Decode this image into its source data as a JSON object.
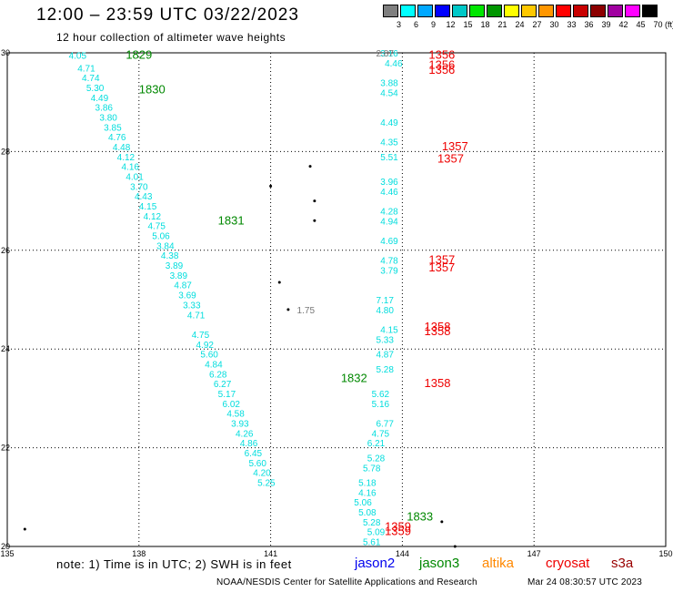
{
  "header": {
    "title": "12:00 – 23:59 UTC 03/22/2023",
    "subtitle": "12 hour collection of altimeter wave heights"
  },
  "legend": {
    "values": [
      "3",
      "6",
      "9",
      "12",
      "15",
      "18",
      "21",
      "24",
      "27",
      "30",
      "33",
      "36",
      "39",
      "42",
      "45",
      "70"
    ],
    "colors": [
      "#7f7f7f",
      "#00ffff",
      "#00a8ff",
      "#0000ff",
      "#00c8c8",
      "#00e600",
      "#009600",
      "#ffff00",
      "#ffc800",
      "#ff9600",
      "#ff0000",
      "#c80000",
      "#8c0000",
      "#a000a0",
      "#ff00ff",
      "#000000"
    ],
    "unit": "(ft)"
  },
  "footer": {
    "note": "note: 1) Time is in UTC; 2) SWH is in feet",
    "missions": [
      {
        "name": "jason2",
        "color": "#0000ee"
      },
      {
        "name": "jason3",
        "color": "#008800"
      },
      {
        "name": "altika",
        "color": "#ff8800"
      },
      {
        "name": "cryosat",
        "color": "#ee0000"
      },
      {
        "name": "s3a",
        "color": "#990000"
      }
    ],
    "credit": "NOAA/NESDIS Center for Satellite Applications and Research",
    "timestamp": "Mar 24 08:30:57 UTC 2023"
  },
  "chart_data": {
    "type": "scatter",
    "xlim": [
      135,
      150
    ],
    "ylim": [
      20,
      30
    ],
    "x_ticks": [
      135,
      138,
      141,
      144,
      147,
      150
    ],
    "y_ticks": [
      20,
      22,
      24,
      26,
      28,
      30
    ],
    "grid": true,
    "series": [
      {
        "mission": "jason3",
        "color": "#00dddd",
        "points": [
          [
            136.4,
            29.95,
            "4.05"
          ],
          [
            136.6,
            29.7,
            "4.71"
          ],
          [
            136.7,
            29.5,
            "4.74"
          ],
          [
            136.8,
            29.3,
            "5.30"
          ],
          [
            136.9,
            29.1,
            "4.49"
          ],
          [
            137.0,
            28.9,
            "3.86"
          ],
          [
            137.1,
            28.7,
            "3.80"
          ],
          [
            137.2,
            28.5,
            "3.85"
          ],
          [
            137.3,
            28.3,
            "4.76"
          ],
          [
            137.4,
            28.1,
            "4.48"
          ],
          [
            137.5,
            27.9,
            "4.12"
          ],
          [
            137.6,
            27.7,
            "4.16"
          ],
          [
            137.7,
            27.5,
            "4.01"
          ],
          [
            137.8,
            27.3,
            "3.70"
          ],
          [
            137.9,
            27.1,
            "4.43"
          ],
          [
            138.0,
            26.9,
            "4.15"
          ],
          [
            138.1,
            26.7,
            "4.12"
          ],
          [
            138.2,
            26.5,
            "4.75"
          ],
          [
            138.3,
            26.3,
            "5.06"
          ],
          [
            138.4,
            26.1,
            "3.84"
          ],
          [
            138.5,
            25.9,
            "4.38"
          ],
          [
            138.6,
            25.7,
            "3.89"
          ],
          [
            138.7,
            25.5,
            "3.89"
          ],
          [
            138.8,
            25.3,
            "4.87"
          ],
          [
            138.9,
            25.1,
            "3.69"
          ],
          [
            139.0,
            24.9,
            "3.33"
          ],
          [
            139.1,
            24.7,
            "4.71"
          ],
          [
            139.2,
            24.3,
            "4.75"
          ],
          [
            139.3,
            24.1,
            "4.92"
          ],
          [
            139.4,
            23.9,
            "5.60"
          ],
          [
            139.5,
            23.7,
            "4.84"
          ],
          [
            139.6,
            23.5,
            "6.28"
          ],
          [
            139.7,
            23.3,
            "6.27"
          ],
          [
            139.8,
            23.1,
            "5.17"
          ],
          [
            139.9,
            22.9,
            "6.02"
          ],
          [
            140.0,
            22.7,
            "4.58"
          ],
          [
            140.1,
            22.5,
            "3.93"
          ],
          [
            140.2,
            22.3,
            "4.26"
          ],
          [
            140.3,
            22.1,
            "4.86"
          ],
          [
            140.4,
            21.9,
            "6.45"
          ],
          [
            140.5,
            21.7,
            "5.60"
          ],
          [
            140.6,
            21.5,
            "4.20"
          ],
          [
            140.7,
            21.3,
            "5.25"
          ]
        ]
      },
      {
        "mission": "jason3",
        "color": "#00dddd",
        "points": [
          [
            143.5,
            30.0,
            "3.16"
          ],
          [
            143.6,
            29.8,
            "4.46"
          ],
          [
            143.5,
            29.4,
            "3.88"
          ],
          [
            143.5,
            29.2,
            "4.54"
          ],
          [
            143.5,
            28.6,
            "4.49"
          ],
          [
            143.5,
            28.2,
            "4.35"
          ],
          [
            143.5,
            27.9,
            "5.51"
          ],
          [
            143.5,
            27.4,
            "3.96"
          ],
          [
            143.5,
            27.2,
            "4.46"
          ],
          [
            143.5,
            26.8,
            "4.28"
          ],
          [
            143.5,
            26.6,
            "4.94"
          ],
          [
            143.5,
            26.2,
            "4.69"
          ],
          [
            143.5,
            25.8,
            "4.78"
          ],
          [
            143.5,
            25.6,
            "3.79"
          ],
          [
            143.4,
            25.0,
            "7.17"
          ],
          [
            143.4,
            24.8,
            "4.80"
          ],
          [
            143.5,
            24.4,
            "4.15"
          ],
          [
            143.4,
            24.2,
            "5.33"
          ],
          [
            143.4,
            23.9,
            "4.87"
          ],
          [
            143.4,
            23.6,
            "5.28"
          ],
          [
            143.3,
            23.1,
            "5.62"
          ],
          [
            143.3,
            22.9,
            "5.16"
          ],
          [
            143.4,
            22.5,
            "6.77"
          ],
          [
            143.3,
            22.3,
            "4.75"
          ],
          [
            143.2,
            22.1,
            "6.21"
          ],
          [
            143.2,
            21.8,
            "5.28"
          ],
          [
            143.1,
            21.6,
            "5.78"
          ],
          [
            143.0,
            21.3,
            "5.18"
          ],
          [
            143.0,
            21.1,
            "4.16"
          ],
          [
            142.9,
            20.9,
            "5.06"
          ],
          [
            143.0,
            20.7,
            "5.08"
          ],
          [
            143.1,
            20.5,
            "5.28"
          ],
          [
            143.2,
            20.3,
            "5.09"
          ],
          [
            143.1,
            20.1,
            "5.61"
          ]
        ]
      },
      {
        "mission": "jason3",
        "color": "#008800",
        "points": [
          [
            137.7,
            29.95,
            "1829"
          ],
          [
            138.0,
            29.25,
            "1830"
          ],
          [
            139.8,
            26.6,
            "1831"
          ],
          [
            142.6,
            23.4,
            "1832"
          ],
          [
            144.1,
            20.6,
            "1833"
          ]
        ]
      },
      {
        "mission": "cryosat",
        "color": "#ee0000",
        "points": [
          [
            144.6,
            29.95,
            "1356"
          ],
          [
            144.6,
            29.75,
            "1356"
          ],
          [
            144.6,
            29.65,
            "1356"
          ],
          [
            144.9,
            28.1,
            "1357"
          ],
          [
            144.8,
            27.85,
            "1357"
          ],
          [
            144.6,
            25.8,
            "1357"
          ],
          [
            144.6,
            25.65,
            "1357"
          ],
          [
            144.5,
            24.45,
            "1358"
          ],
          [
            144.5,
            24.35,
            "1358"
          ],
          [
            144.5,
            23.3,
            "1358"
          ],
          [
            143.6,
            20.4,
            "1359"
          ],
          [
            143.6,
            20.3,
            "1359"
          ]
        ]
      },
      {
        "mission": "other",
        "color": "#777777",
        "points": [
          [
            143.4,
            30.0,
            "2.87"
          ],
          [
            141.6,
            24.8,
            "1.75"
          ]
        ]
      }
    ]
  }
}
